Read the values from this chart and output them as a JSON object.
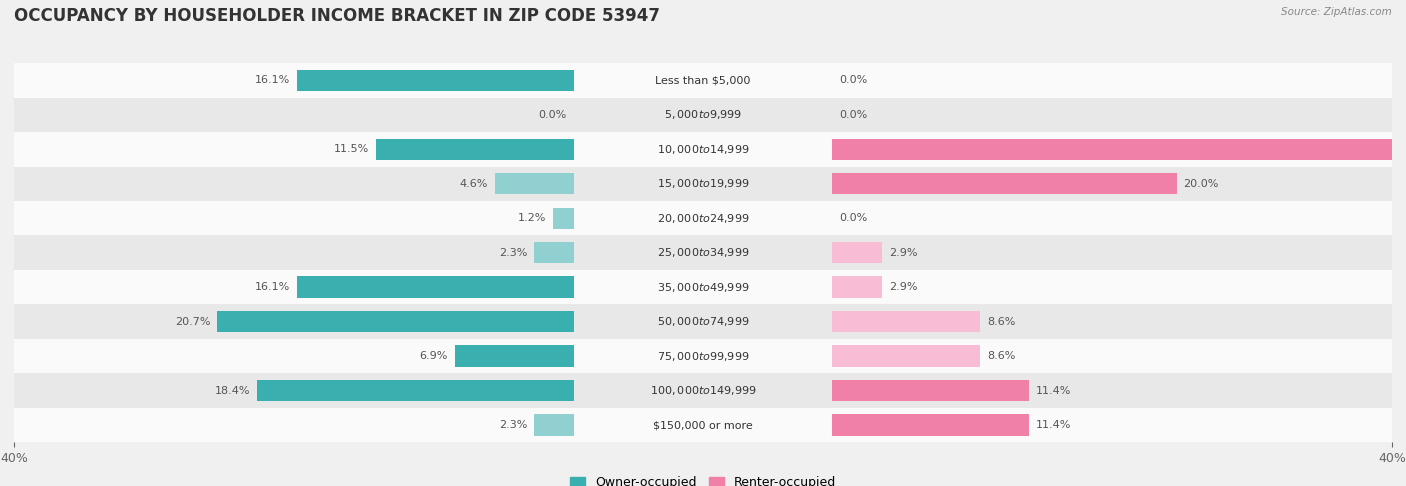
{
  "title": "OCCUPANCY BY HOUSEHOLDER INCOME BRACKET IN ZIP CODE 53947",
  "source": "Source: ZipAtlas.com",
  "categories": [
    "Less than $5,000",
    "$5,000 to $9,999",
    "$10,000 to $14,999",
    "$15,000 to $19,999",
    "$20,000 to $24,999",
    "$25,000 to $34,999",
    "$35,000 to $49,999",
    "$50,000 to $74,999",
    "$75,000 to $99,999",
    "$100,000 to $149,999",
    "$150,000 or more"
  ],
  "owner_values": [
    16.1,
    0.0,
    11.5,
    4.6,
    1.2,
    2.3,
    16.1,
    20.7,
    6.9,
    18.4,
    2.3
  ],
  "renter_values": [
    0.0,
    0.0,
    34.3,
    20.0,
    0.0,
    2.9,
    2.9,
    8.6,
    8.6,
    11.4,
    11.4
  ],
  "owner_color_dark": "#3AAFAF",
  "owner_color_light": "#90D0D0",
  "renter_color_dark": "#F080A8",
  "renter_color_light": "#F8BDD4",
  "axis_limit": 40.0,
  "bar_height": 0.62,
  "background_color": "#f0f0f0",
  "row_bg_light": "#fafafa",
  "row_bg_dark": "#e8e8e8",
  "label_fontsize": 8.0,
  "cat_fontsize": 8.0,
  "title_fontsize": 12,
  "legend_fontsize": 9,
  "owner_threshold": 5.0,
  "renter_threshold": 10.0
}
